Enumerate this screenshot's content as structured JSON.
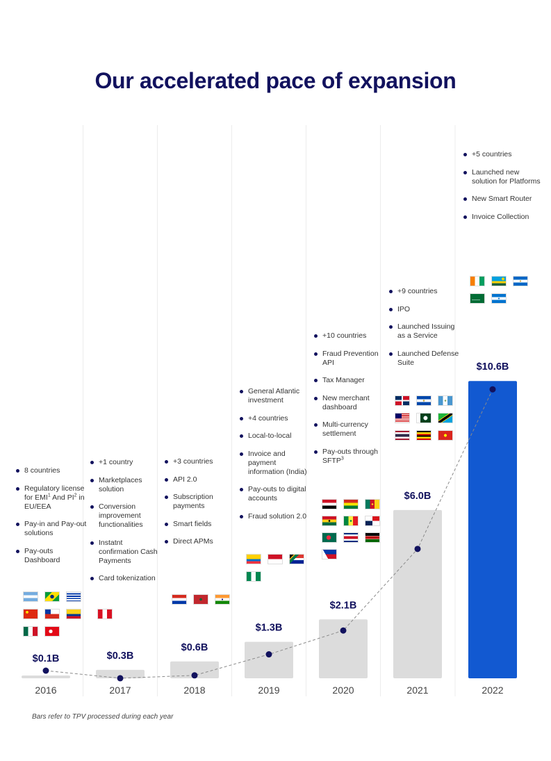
{
  "page": {
    "title": "Our accelerated pace of expansion",
    "footnote": "Bars refer to TPV processed during each year"
  },
  "colors": {
    "accent": "#1259d1",
    "bar": "#dcdcdc",
    "navy": "#12125e"
  },
  "chart_data": {
    "type": "bar",
    "categories": [
      "2016",
      "2017",
      "2018",
      "2019",
      "2020",
      "2021",
      "2022"
    ],
    "values": [
      0.1,
      0.3,
      0.6,
      1.3,
      2.1,
      6.0,
      10.6
    ],
    "data_labels": [
      "$0.1B",
      "$0.3B",
      "$0.6B",
      "$1.3B",
      "$2.1B",
      "$6.0B",
      "$10.6B"
    ],
    "highlight_index": 6,
    "trend_line": "dashed",
    "ylim": [
      0,
      11.2
    ],
    "grid": "vertical separators"
  },
  "years": [
    {
      "features": [
        {
          "text": "8 countries"
        },
        {
          "text": "Regulatory license for EMI",
          "sup": "1",
          "text2": " And PI",
          "sup2": "2",
          "text3": "  in EU/EEA"
        },
        {
          "text": "Pay-in and Pay-out solutions"
        },
        {
          "text": "Pay-outs Dashboard"
        }
      ],
      "flags": [
        "argentina-flag",
        "brazil-flag",
        "uruguay-flag",
        "china-flag",
        "chile-flag",
        "colombia-flag",
        "mexico-flag",
        "turkey-flag"
      ]
    },
    {
      "features": [
        {
          "text": "+1 country"
        },
        {
          "text": "Marketplaces solution"
        },
        {
          "text": "Conversion improvement functionalities"
        },
        {
          "text": "Instatnt confirmation Cash Payments"
        },
        {
          "text": "Card tokenization"
        }
      ],
      "flags": [
        "peru-flag"
      ]
    },
    {
      "features": [
        {
          "text": "+3 countries"
        },
        {
          "text": "API 2.0"
        },
        {
          "text": "Subscription payments"
        },
        {
          "text": "Smart fields"
        },
        {
          "text": "Direct APMs"
        }
      ],
      "flags": [
        "paraguay-flag",
        "morocco-flag",
        "india-flag"
      ]
    },
    {
      "features": [
        {
          "text": "General Atlantic investment"
        },
        {
          "text": "+4 countries"
        },
        {
          "text": "Local-to-local"
        },
        {
          "text": "Invoice and payment information (India)"
        },
        {
          "text": "Pay-outs to digital accounts"
        },
        {
          "text": "Fraud solution 2.0"
        }
      ],
      "flags": [
        "ecuador-flag",
        "indonesia-flag",
        "south-africa-flag",
        "nigeria-flag"
      ]
    },
    {
      "features": [
        {
          "text": "+10 countries"
        },
        {
          "text": "Fraud Prevention API"
        },
        {
          "text": "Tax Manager"
        },
        {
          "text": "New merchant dashboard"
        },
        {
          "text": "Multi-currency settlement"
        },
        {
          "text": "Pay-outs through SFTP",
          "sup": "3"
        }
      ],
      "flags": [
        "egypt-flag",
        "bolivia-flag",
        "cameroon-flag",
        "ghana-flag",
        "senegal-flag",
        "panama-flag",
        "bangladesh-flag",
        "costa-rica-flag",
        "kenya-flag",
        "philippines-flag"
      ]
    },
    {
      "features": [
        {
          "text": "+9 countries"
        },
        {
          "text": "IPO"
        },
        {
          "text": "Launched Issuing as a Service"
        },
        {
          "text": "Launched Defense Suite"
        }
      ],
      "flags": [
        "dominican-republic-flag",
        "el-salvador-flag",
        "guatemala-flag",
        "malaysia-flag",
        "pakistan-flag",
        "tanzania-flag",
        "thailand-flag",
        "uganda-flag",
        "vietnam-flag"
      ]
    },
    {
      "features": [
        {
          "text": "+5 countries"
        },
        {
          "text": "Launched new solution for Platforms"
        },
        {
          "text": "New Smart Router"
        },
        {
          "text": "Invoice Collection"
        }
      ],
      "flags": [
        "ivory-coast-flag",
        "rwanda-flag",
        "nicaragua-flag",
        "saudi-arabia-flag",
        "honduras-flag"
      ]
    }
  ]
}
